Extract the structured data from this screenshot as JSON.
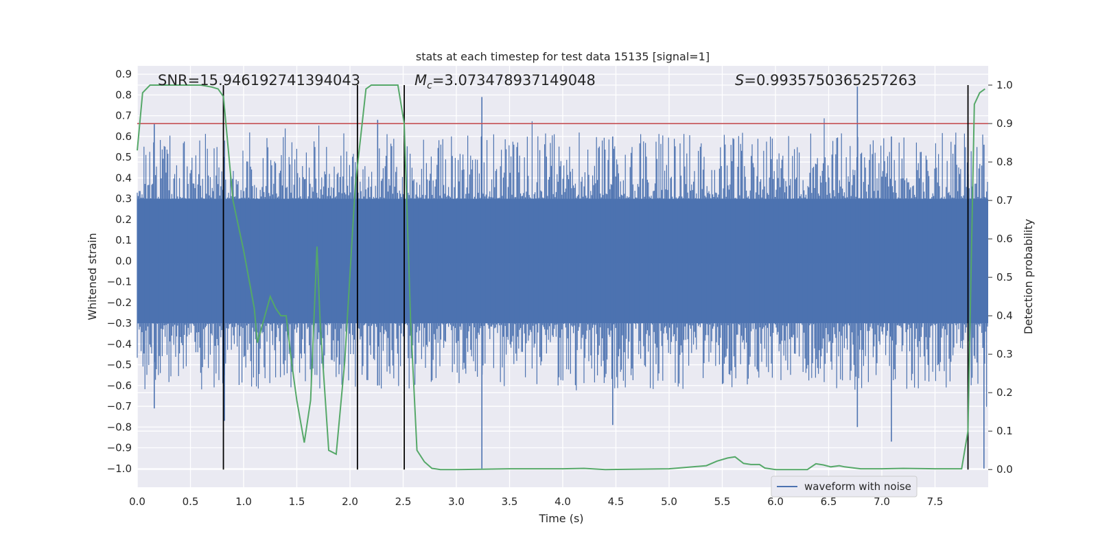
{
  "chart_data": {
    "type": "line",
    "title": "stats at each timestep for test data 15135 [signal=1]",
    "xlabel": "Time (s)",
    "ylabel": "Whitened strain",
    "ylabel_right": "Detection probability",
    "xlim": [
      0.0,
      8.0
    ],
    "ylim": [
      -1.09,
      0.94
    ],
    "ylim_right": [
      -0.046,
      1.05
    ],
    "x_ticks": [
      "0.0",
      "0.5",
      "1.0",
      "1.5",
      "2.0",
      "2.5",
      "3.0",
      "3.5",
      "4.0",
      "4.5",
      "5.0",
      "5.5",
      "6.0",
      "6.5",
      "7.0",
      "7.5"
    ],
    "y_ticks": [
      "0.9",
      "0.8",
      "0.7",
      "0.6",
      "0.5",
      "0.4",
      "0.3",
      "0.2",
      "0.1",
      "0.0",
      "-0.1",
      "-0.2",
      "-0.3",
      "-0.4",
      "-0.5",
      "-0.6",
      "-0.7",
      "-0.8",
      "-0.9",
      "-1.0"
    ],
    "y_ticks_right": [
      "1.0",
      "0.9",
      "0.8",
      "0.7",
      "0.6",
      "0.5",
      "0.4",
      "0.3",
      "0.2",
      "0.1",
      "0.0"
    ],
    "annotations": {
      "snr": "SNR=15.946192741394043",
      "mc_symbol": "M",
      "mc_sub": "c",
      "mc_value": "=3.073478937149048",
      "s_symbol": "S",
      "s_value": "=0.9935750365257263"
    },
    "legend": {
      "label": "waveform with noise",
      "position": "lower-right"
    },
    "threshold": {
      "value": 0.9,
      "axis": "right",
      "color": "#c44e52"
    },
    "vertical_markers": [
      0.81,
      2.07,
      2.51,
      7.81
    ],
    "series": [
      {
        "name": "waveform with noise",
        "axis": "left",
        "color": "#4c72b0",
        "description": "noisy whitened strain, dense band roughly -0.3..0.3 with spikes",
        "core_band": [
          -0.3,
          0.3
        ],
        "highlights": [
          {
            "x": 3.24,
            "y_min": -1.0,
            "y_max": 0.79
          },
          {
            "x": 6.77,
            "y_min": -0.8,
            "y_max": 0.84
          },
          {
            "x": 7.96,
            "y_min": -1.0,
            "y_max": 0.56
          },
          {
            "x": 0.16,
            "y_min": -0.71,
            "y_max": 0.66
          },
          {
            "x": 0.82,
            "y_min": -0.77,
            "y_max": 0.5
          },
          {
            "x": 4.47,
            "y_min": -0.79,
            "y_max": 0.6
          },
          {
            "x": 7.09,
            "y_min": -0.87,
            "y_max": 0.6
          },
          {
            "x": 2.26,
            "y_min": -0.6,
            "y_max": 0.68
          }
        ]
      },
      {
        "name": "detection probability",
        "axis": "right",
        "color": "#55a868",
        "x": [
          0.0,
          0.05,
          0.12,
          0.2,
          0.4,
          0.6,
          0.7,
          0.76,
          0.81,
          0.9,
          1.0,
          1.1,
          1.13,
          1.2,
          1.25,
          1.3,
          1.35,
          1.4,
          1.45,
          1.5,
          1.57,
          1.63,
          1.69,
          1.72,
          1.8,
          1.87,
          1.95,
          2.05,
          2.15,
          2.2,
          2.3,
          2.4,
          2.45,
          2.51,
          2.57,
          2.63,
          2.7,
          2.77,
          2.85,
          3.0,
          3.5,
          4.0,
          4.2,
          4.4,
          5.0,
          5.35,
          5.45,
          5.55,
          5.62,
          5.7,
          5.77,
          5.85,
          5.9,
          6.0,
          6.1,
          6.3,
          6.38,
          6.45,
          6.52,
          6.6,
          6.65,
          6.8,
          7.0,
          7.2,
          7.5,
          7.75,
          7.81,
          7.87,
          7.92,
          7.97
        ],
        "y": [
          0.83,
          0.98,
          1.0,
          1.0,
          1.0,
          1.0,
          0.995,
          0.99,
          0.97,
          0.7,
          0.57,
          0.42,
          0.33,
          0.4,
          0.45,
          0.42,
          0.4,
          0.4,
          0.28,
          0.18,
          0.07,
          0.18,
          0.58,
          0.38,
          0.05,
          0.04,
          0.28,
          0.74,
          0.99,
          1.0,
          1.0,
          1.0,
          1.0,
          0.9,
          0.39,
          0.05,
          0.02,
          0.003,
          0.0,
          0.0,
          0.002,
          0.002,
          0.003,
          0.0,
          0.002,
          0.01,
          0.022,
          0.03,
          0.033,
          0.016,
          0.013,
          0.013,
          0.004,
          0.0,
          0.0,
          0.0,
          0.015,
          0.012,
          0.007,
          0.01,
          0.007,
          0.002,
          0.002,
          0.003,
          0.002,
          0.002,
          0.1,
          0.95,
          0.98,
          0.99
        ]
      }
    ]
  }
}
